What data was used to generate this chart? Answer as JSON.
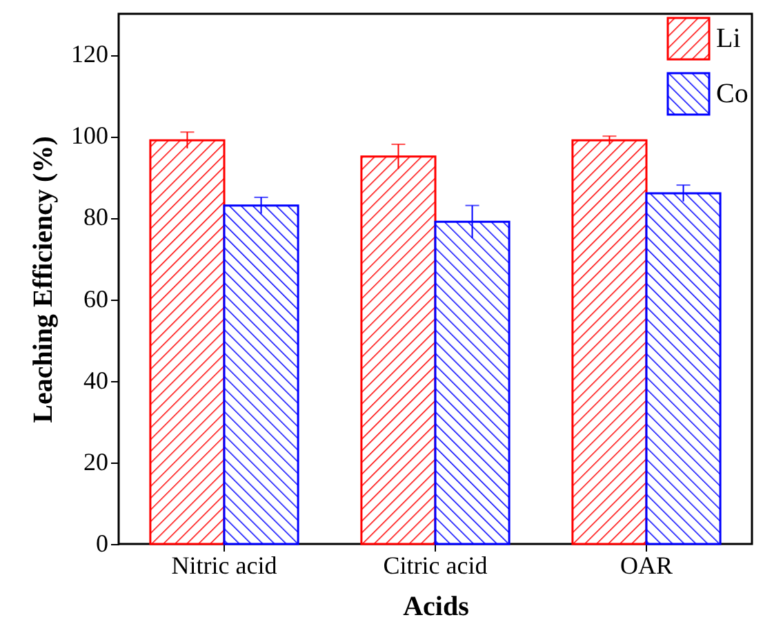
{
  "chart_data": {
    "type": "bar",
    "xlabel": "Acids",
    "ylabel": "Leaching Efficiency (%)",
    "categories": [
      "Nitric acid",
      "Citric acid",
      "OAR"
    ],
    "series": [
      {
        "name": "Li",
        "color": "#ff0000",
        "values": [
          99,
          95,
          99
        ],
        "errors": [
          2,
          3,
          1
        ]
      },
      {
        "name": "Co",
        "color": "#0000ff",
        "values": [
          83,
          79,
          86
        ],
        "errors": [
          2,
          4,
          2
        ]
      }
    ],
    "ylim": [
      0,
      130
    ],
    "yticks": [
      0,
      20,
      40,
      60,
      80,
      100,
      120
    ],
    "grid": false,
    "legend": "top right"
  }
}
